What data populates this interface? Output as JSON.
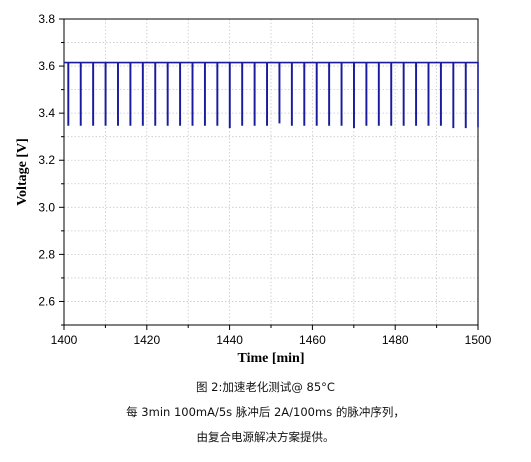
{
  "chart_data": {
    "type": "line",
    "xlabel": "Time [min]",
    "ylabel": "Voltage [V]",
    "xlim": [
      1400,
      1500
    ],
    "ylim": [
      2.5,
      3.8
    ],
    "xticks": [
      "1400",
      "1420",
      "1440",
      "1460",
      "1480",
      "1500"
    ],
    "yticks": [
      "2.6",
      "2.8",
      "3.0",
      "3.2",
      "3.4",
      "3.6",
      "3.8"
    ],
    "grid": true,
    "line_color": "#1a1a9e",
    "pulse_period_min": 3,
    "pulse_duration_min": 0.0833,
    "baseline_voltage": 3.615,
    "series": [
      {
        "pulse_start_min": [
          1401.0,
          1404.0,
          1407.0,
          1410.0,
          1413.0,
          1416.0,
          1419.0,
          1422.0,
          1425.0,
          1428.0,
          1431.0,
          1434.0,
          1437.0,
          1440.0,
          1443.0,
          1446.0,
          1449.0,
          1452.0,
          1455.0,
          1458.0,
          1461.0,
          1464.0,
          1467.0,
          1470.0,
          1473.0,
          1476.0,
          1479.0,
          1482.0,
          1485.0,
          1488.0,
          1491.0,
          1494.0,
          1497.0,
          1500.0
        ],
        "pulse_min_voltage": [
          3.35,
          3.35,
          3.35,
          3.35,
          3.35,
          3.35,
          3.35,
          3.35,
          3.35,
          3.35,
          3.35,
          3.35,
          3.35,
          3.34,
          3.35,
          3.35,
          3.35,
          3.36,
          3.35,
          3.35,
          3.35,
          3.35,
          3.35,
          3.34,
          3.35,
          3.35,
          3.35,
          3.35,
          3.35,
          3.35,
          3.35,
          3.34,
          3.34,
          3.34
        ]
      }
    ]
  },
  "caption": {
    "line1": "图 2:加速老化测试@ 85°C",
    "line2": "每 3min 100mA/5s 脉冲后 2A/100ms 的脉冲序列，",
    "line3": "由复合电源解决方案提供。"
  }
}
